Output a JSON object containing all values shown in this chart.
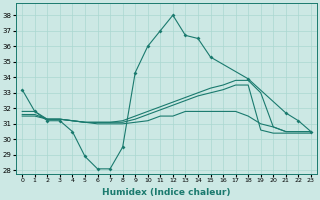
{
  "xlabel": "Humidex (Indice chaleur)",
  "background_color": "#cce8e4",
  "grid_color": "#aad8d0",
  "line_color": "#1a7a6e",
  "xlim": [
    -0.5,
    23.5
  ],
  "ylim": [
    27.8,
    38.8
  ],
  "yticks": [
    28,
    29,
    30,
    31,
    32,
    33,
    34,
    35,
    36,
    37,
    38
  ],
  "xticks": [
    0,
    1,
    2,
    3,
    4,
    5,
    6,
    7,
    8,
    9,
    10,
    11,
    12,
    13,
    14,
    15,
    16,
    17,
    18,
    19,
    20,
    21,
    22,
    23
  ],
  "series_with_markers": [
    [
      33.2,
      31.8,
      31.2,
      31.2,
      30.5,
      28.9,
      28.1,
      28.1,
      29.5,
      34.3,
      36.0,
      37.0,
      38.0,
      36.7,
      36.5,
      35.3,
      null,
      null,
      33.9,
      null,
      null,
      31.7,
      31.2,
      30.5
    ]
  ],
  "series_main": [
    33.2,
    31.8,
    31.2,
    31.2,
    30.5,
    28.9,
    28.1,
    28.1,
    29.5,
    34.3,
    36.0,
    37.0,
    38.0,
    36.7,
    36.5,
    35.3,
    33.9,
    31.7,
    31.2,
    30.5
  ],
  "series_main_x": [
    0,
    1,
    2,
    3,
    4,
    5,
    6,
    7,
    8,
    9,
    10,
    11,
    12,
    13,
    14,
    15,
    18,
    21,
    22,
    23
  ],
  "series_lines": [
    {
      "x": [
        0,
        1,
        2,
        3,
        4,
        5,
        6,
        7,
        8,
        9,
        10,
        11,
        12,
        13,
        14,
        15,
        16,
        17,
        18,
        19,
        20,
        21,
        22,
        23
      ],
      "y": [
        31.8,
        31.8,
        31.3,
        31.3,
        31.2,
        31.1,
        31.1,
        31.1,
        31.2,
        31.5,
        31.8,
        32.1,
        32.4,
        32.7,
        33.0,
        33.3,
        33.5,
        33.8,
        33.8,
        33.0,
        30.8,
        30.5,
        30.5,
        30.5
      ]
    },
    {
      "x": [
        0,
        1,
        2,
        3,
        4,
        5,
        6,
        7,
        8,
        9,
        10,
        11,
        12,
        13,
        14,
        15,
        16,
        17,
        18,
        19,
        20,
        21,
        22,
        23
      ],
      "y": [
        31.6,
        31.6,
        31.3,
        31.3,
        31.2,
        31.1,
        31.1,
        31.1,
        31.1,
        31.3,
        31.6,
        31.9,
        32.2,
        32.5,
        32.8,
        33.0,
        33.2,
        33.5,
        33.5,
        30.6,
        30.4,
        30.4,
        30.4,
        30.4
      ]
    },
    {
      "x": [
        0,
        1,
        2,
        3,
        4,
        5,
        6,
        7,
        8,
        9,
        10,
        11,
        12,
        13,
        14,
        15,
        16,
        17,
        18,
        19,
        20,
        21,
        22,
        23
      ],
      "y": [
        31.5,
        31.5,
        31.3,
        31.3,
        31.2,
        31.1,
        31.0,
        31.0,
        31.0,
        31.1,
        31.2,
        31.5,
        31.5,
        31.8,
        31.8,
        31.8,
        31.8,
        31.8,
        31.5,
        31.0,
        30.8,
        30.5,
        30.5,
        30.5
      ]
    }
  ]
}
